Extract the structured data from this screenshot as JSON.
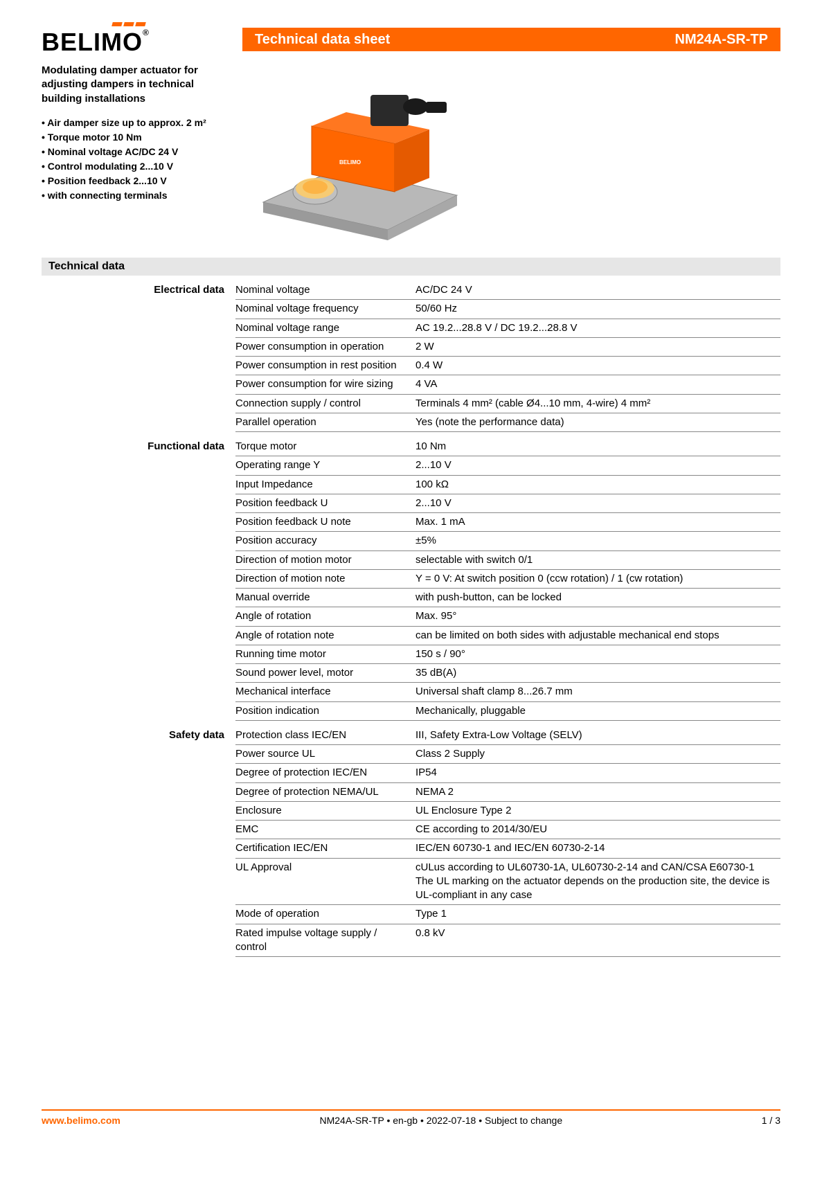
{
  "header": {
    "logo_text": "BELIMO",
    "title": "Technical data sheet",
    "model": "NM24A-SR-TP"
  },
  "intro": {
    "heading": "Modulating damper actuator for adjusting dampers in technical building installations",
    "bullets": [
      "• Air damper size up to approx. 2 m²",
      "• Torque motor 10 Nm",
      "• Nominal voltage AC/DC 24 V",
      "• Control modulating 2...10 V",
      "• Position feedback 2...10 V",
      "• with connecting terminals"
    ]
  },
  "section_title": "Technical data",
  "groups": [
    {
      "label": "Electrical data",
      "rows": [
        {
          "k": "Nominal voltage",
          "v": "AC/DC 24 V"
        },
        {
          "k": "Nominal voltage frequency",
          "v": "50/60 Hz"
        },
        {
          "k": "Nominal voltage range",
          "v": "AC 19.2...28.8 V / DC 19.2...28.8 V"
        },
        {
          "k": "Power consumption in operation",
          "v": "2 W"
        },
        {
          "k": "Power consumption in rest position",
          "v": "0.4 W"
        },
        {
          "k": "Power consumption for wire sizing",
          "v": "4 VA"
        },
        {
          "k": "Connection supply / control",
          "v": "Terminals 4 mm² (cable Ø4...10 mm, 4-wire) 4 mm²"
        },
        {
          "k": "Parallel operation",
          "v": "Yes (note the performance data)"
        }
      ]
    },
    {
      "label": "Functional data",
      "rows": [
        {
          "k": "Torque motor",
          "v": "10 Nm"
        },
        {
          "k": "Operating range Y",
          "v": "2...10 V"
        },
        {
          "k": "Input Impedance",
          "v": "100 kΩ"
        },
        {
          "k": "Position feedback U",
          "v": "2...10 V"
        },
        {
          "k": "Position feedback U note",
          "v": "Max. 1 mA"
        },
        {
          "k": "Position accuracy",
          "v": "±5%"
        },
        {
          "k": "Direction of motion motor",
          "v": "selectable with switch 0/1"
        },
        {
          "k": "Direction of motion note",
          "v": "Y = 0 V: At switch position 0 (ccw rotation) / 1 (cw rotation)"
        },
        {
          "k": "Manual override",
          "v": "with push-button, can be locked"
        },
        {
          "k": "Angle of rotation",
          "v": "Max. 95°"
        },
        {
          "k": "Angle of rotation note",
          "v": "can be limited on both sides with adjustable mechanical end stops"
        },
        {
          "k": "Running time motor",
          "v": "150 s / 90°"
        },
        {
          "k": "Sound power level, motor",
          "v": "35 dB(A)"
        },
        {
          "k": "Mechanical interface",
          "v": "Universal shaft clamp 8...26.7 mm"
        },
        {
          "k": "Position indication",
          "v": "Mechanically, pluggable"
        }
      ]
    },
    {
      "label": "Safety data",
      "rows": [
        {
          "k": "Protection class IEC/EN",
          "v": "III, Safety Extra-Low Voltage (SELV)"
        },
        {
          "k": "Power source UL",
          "v": "Class 2 Supply"
        },
        {
          "k": "Degree of protection IEC/EN",
          "v": "IP54"
        },
        {
          "k": "Degree of protection NEMA/UL",
          "v": "NEMA 2"
        },
        {
          "k": "Enclosure",
          "v": "UL Enclosure Type 2"
        },
        {
          "k": "EMC",
          "v": "CE according to 2014/30/EU"
        },
        {
          "k": "Certification IEC/EN",
          "v": "IEC/EN 60730-1 and IEC/EN 60730-2-14"
        },
        {
          "k": "UL Approval",
          "v": "cULus according to UL60730-1A, UL60730-2-14 and CAN/CSA E60730-1\nThe UL marking on the actuator depends on the production site, the device is UL-compliant in any case"
        },
        {
          "k": "Mode of operation",
          "v": "Type 1"
        },
        {
          "k": "Rated impulse voltage supply / control",
          "v": "0.8 kV"
        }
      ]
    }
  ],
  "footer": {
    "left": "www.belimo.com",
    "center": "NM24A-SR-TP • en-gb • 2022-07-18 • Subject to change",
    "right": "1 / 3"
  },
  "colors": {
    "brand": "#ff6600",
    "section_bg": "#e6e6e6",
    "border": "#888888"
  }
}
